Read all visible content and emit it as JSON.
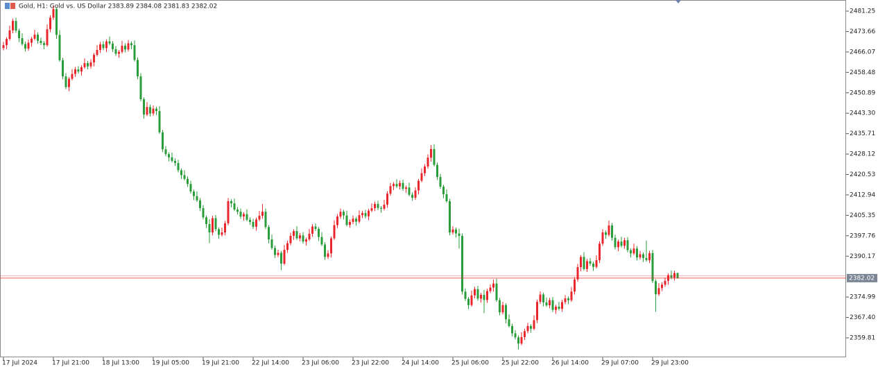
{
  "chart_data": {
    "type": "candlestick",
    "title": "Gold, H1:  Gold vs. US Dollar  2383.89 2384.08 2381.83 2382.02",
    "up_color": "#e8262b",
    "down_color": "#2a9d3a",
    "last_price": 2382.02,
    "ylim": [
      2352.59,
      2485.38
    ],
    "yticks": [
      2481.25,
      2473.66,
      2466.07,
      2458.48,
      2450.89,
      {
        "value": 2443.3,
        "label": "2443.30"
      },
      2435.71,
      2428.12,
      2420.53,
      2412.94,
      2405.35,
      2397.76,
      2390.17,
      2374.99,
      {
        "value": 2367.4,
        "label": "2367.40"
      },
      2359.81
    ],
    "categories": [
      "17 Jul 2024",
      null,
      null,
      null,
      null,
      null,
      null,
      null,
      null,
      null,
      null,
      null,
      null,
      null,
      null,
      null,
      "17 Jul 21:00",
      null,
      null,
      null,
      null,
      null,
      null,
      null,
      null,
      null,
      null,
      null,
      null,
      null,
      null,
      null,
      "18 Jul 13:00",
      null,
      null,
      null,
      null,
      null,
      null,
      null,
      null,
      null,
      null,
      null,
      null,
      null,
      null,
      null,
      "19 Jul 05:00",
      null,
      null,
      null,
      null,
      null,
      null,
      null,
      null,
      null,
      null,
      null,
      null,
      null,
      null,
      null,
      "19 Jul 21:00",
      null,
      null,
      null,
      null,
      null,
      null,
      null,
      null,
      null,
      null,
      null,
      null,
      null,
      null,
      null,
      "22 Jul 14:00",
      null,
      null,
      null,
      null,
      null,
      null,
      null,
      null,
      null,
      null,
      null,
      null,
      null,
      null,
      null,
      "23 Jul 06:00",
      null,
      null,
      null,
      null,
      null,
      null,
      null,
      null,
      null,
      null,
      null,
      null,
      null,
      null,
      null,
      "23 Jul 22:00",
      null,
      null,
      null,
      null,
      null,
      null,
      null,
      null,
      null,
      null,
      null,
      null,
      null,
      null,
      null,
      "24 Jul 14:00",
      null,
      null,
      null,
      null,
      null,
      null,
      null,
      null,
      null,
      null,
      null,
      null,
      null,
      null,
      null,
      "25 Jul 06:00",
      null,
      null,
      null,
      null,
      null,
      null,
      null,
      null,
      null,
      null,
      null,
      null,
      null,
      null,
      null,
      "25 Jul 22:00",
      null,
      null,
      null,
      null,
      null,
      null,
      null,
      null,
      null,
      null,
      null,
      null,
      null,
      null,
      null,
      "26 Jul 14:00",
      null,
      null,
      null,
      null,
      null,
      null,
      null,
      null,
      null,
      null,
      null,
      null,
      null,
      null,
      null,
      "29 Jul 07:00",
      null,
      null,
      null,
      null,
      null,
      null,
      null,
      null,
      null,
      null,
      null,
      null,
      null,
      null,
      null,
      "29 Jul 23:00",
      null,
      null,
      null,
      null,
      null,
      null,
      null,
      null
    ],
    "open": [
      2467.5,
      2468.6,
      2470.9,
      2474.1,
      2477.6,
      2474.0,
      2471.2,
      2469.0,
      2467.3,
      2469.5,
      2471.0,
      2472.5,
      2470.2,
      2469.4,
      2468.6,
      2474.5,
      2478.8,
      2482.0,
      2472.4,
      2463.0,
      2457.0,
      2453.0,
      2456.1,
      2457.9,
      2459.6,
      2458.8,
      2460.4,
      2461.9,
      2460.7,
      2462.2,
      2465.0,
      2466.8,
      2468.9,
      2467.5,
      2470.0,
      2469.2,
      2467.1,
      2465.4,
      2466.1,
      2468.4,
      2467.0,
      2469.3,
      2468.6,
      2463.1,
      2457.0,
      2448.5,
      2442.8,
      2445.6,
      2443.2,
      2445.0,
      2444.1,
      2436.2,
      2429.9,
      2428.1,
      2426.9,
      2425.6,
      2424.8,
      2422.1,
      2420.3,
      2418.9,
      2417.0,
      2414.2,
      2412.5,
      2410.9,
      2408.0,
      2404.6,
      2402.1,
      2399.0,
      2404.3,
      2400.2,
      2398.1,
      2399.0,
      2402.4,
      2410.6,
      2409.8,
      2407.5,
      2406.7,
      2404.9,
      2405.8,
      2403.7,
      2402.9,
      2401.1,
      2403.8,
      2405.2,
      2406.7,
      2401.0,
      2396.4,
      2393.2,
      2390.6,
      2391.4,
      2387.4,
      2392.5,
      2395.0,
      2397.7,
      2399.5,
      2396.8,
      2397.9,
      2395.6,
      2396.4,
      2398.5,
      2401.2,
      2400.3,
      2397.3,
      2394.5,
      2389.9,
      2391.2,
      2396.8,
      2401.7,
      2404.9,
      2406.7,
      2405.3,
      2401.8,
      2402.9,
      2404.1,
      2403.0,
      2405.4,
      2406.2,
      2405.0,
      2407.1,
      2408.0,
      2409.6,
      2408.1,
      2407.8,
      2409.3,
      2413.4,
      2416.2,
      2417.0,
      2416.1,
      2417.4,
      2415.2,
      2415.7,
      2413.0,
      2411.9,
      2414.6,
      2418.2,
      2421.0,
      2423.5,
      2426.8,
      2430.0,
      2424.1,
      2419.6,
      2416.0,
      2413.2,
      2410.6,
      2399.0,
      2400.1,
      2398.6,
      2397.7,
      2377.0,
      2374.3,
      2372.0,
      2375.6,
      2377.9,
      2374.4,
      2375.8,
      2373.9,
      2377.2,
      2378.5,
      2380.0,
      2373.8,
      2369.3,
      2372.0,
      2366.7,
      2364.2,
      2361.5,
      2360.0,
      2357.7,
      2360.1,
      2362.3,
      2364.2,
      2363.2,
      2366.4,
      2373.2,
      2375.9,
      2373.0,
      2371.9,
      2373.8,
      2370.2,
      2371.4,
      2370.6,
      2373.1,
      2374.5,
      2373.8,
      2377.0,
      2381.5,
      2386.1,
      2389.9,
      2385.4,
      2388.3,
      2387.4,
      2386.2,
      2388.7,
      2394.8,
      2399.0,
      2398.1,
      2401.6,
      2397.0,
      2393.5,
      2395.6,
      2394.0,
      2396.1,
      2392.4,
      2391.2,
      2393.0,
      2389.7,
      2390.9,
      2389.5,
      2388.7,
      2391.3,
      2380.9,
      2376.0,
      2378.3,
      2379.6,
      2381.0,
      2383.1,
      2382.2,
      2383.89
    ],
    "high": [
      2469.8,
      2471.6,
      2475.9,
      2478.5,
      2478.8,
      2474.7,
      2473.0,
      2469.9,
      2470.7,
      2471.7,
      2474.3,
      2473.4,
      2471.4,
      2470.1,
      2476.3,
      2479.7,
      2483.2,
      2482.7,
      2474.2,
      2463.9,
      2458.2,
      2456.8,
      2459.7,
      2460.5,
      2460.8,
      2461.1,
      2463.7,
      2462.8,
      2463.4,
      2465.7,
      2468.6,
      2469.8,
      2470.1,
      2470.7,
      2471.8,
      2470.1,
      2468.3,
      2466.8,
      2470.2,
      2469.3,
      2470.5,
      2470.0,
      2470.4,
      2464.0,
      2458.2,
      2449.2,
      2447.4,
      2446.5,
      2446.2,
      2445.7,
      2445.9,
      2437.1,
      2431.1,
      2428.8,
      2428.7,
      2426.5,
      2426.0,
      2422.8,
      2422.1,
      2419.8,
      2418.2,
      2414.9,
      2414.3,
      2411.8,
      2409.2,
      2405.3,
      2403.9,
      2405.2,
      2405.5,
      2400.9,
      2400.8,
      2403.3,
      2411.8,
      2411.3,
      2411.6,
      2408.4,
      2407.9,
      2406.5,
      2407.6,
      2404.6,
      2404.1,
      2404.5,
      2407.0,
      2409.6,
      2407.9,
      2401.7,
      2398.2,
      2394.1,
      2392.6,
      2392.1,
      2394.3,
      2395.9,
      2398.9,
      2400.2,
      2401.3,
      2398.8,
      2399.1,
      2397.1,
      2400.3,
      2402.1,
      2402.4,
      2401.0,
      2399.1,
      2395.4,
      2392.4,
      2397.5,
      2403.5,
      2405.8,
      2407.9,
      2407.4,
      2407.1,
      2403.8,
      2405.3,
      2404.8,
      2407.2,
      2407.1,
      2407.4,
      2407.8,
      2409.8,
      2410.5,
      2410.8,
      2408.8,
      2411.1,
      2414.3,
      2417.4,
      2417.7,
      2418.8,
      2418.3,
      2418.6,
      2416.4,
      2417.5,
      2413.9,
      2415.8,
      2418.9,
      2422.8,
      2424.4,
      2428.0,
      2431.5,
      2431.8,
      2425.0,
      2420.8,
      2416.7,
      2415.0,
      2411.5,
      2401.3,
      2400.8,
      2400.4,
      2398.6,
      2378.2,
      2375.0,
      2377.4,
      2378.8,
      2379.1,
      2376.5,
      2377.6,
      2378.1,
      2379.7,
      2381.5,
      2381.8,
      2374.7,
      2373.2,
      2372.7,
      2368.5,
      2365.1,
      2362.7,
      2360.7,
      2361.9,
      2363.2,
      2365.4,
      2364.9,
      2368.2,
      2374.1,
      2377.1,
      2376.6,
      2374.8,
      2374.7,
      2375.0,
      2372.1,
      2373.2,
      2374.0,
      2375.7,
      2375.2,
      2378.8,
      2382.4,
      2387.3,
      2390.6,
      2391.7,
      2389.2,
      2389.5,
      2388.1,
      2390.5,
      2395.7,
      2400.2,
      2399.7,
      2403.4,
      2402.5,
      2398.2,
      2396.3,
      2397.4,
      2397.0,
      2397.3,
      2393.1,
      2394.8,
      2393.9,
      2392.1,
      2391.6,
      2396.0,
      2392.2,
      2392.5,
      2381.6,
      2380.1,
      2380.5,
      2382.2,
      2383.8,
      2384.9,
      2384.8,
      2384.08
    ],
    "low": [
      2466.7,
      2467.1,
      2470.3,
      2473.0,
      2473.2,
      2469.7,
      2468.4,
      2466.2,
      2466.5,
      2468.0,
      2470.4,
      2469.1,
      2468.6,
      2467.1,
      2468.0,
      2473.4,
      2478.0,
      2470.9,
      2462.4,
      2455.9,
      2452.2,
      2451.5,
      2455.5,
      2456.8,
      2458.0,
      2457.3,
      2459.8,
      2459.6,
      2459.9,
      2460.7,
      2464.4,
      2465.7,
      2466.7,
      2466.0,
      2468.6,
      2466.0,
      2464.6,
      2463.9,
      2465.5,
      2465.9,
      2466.2,
      2467.1,
      2462.5,
      2455.9,
      2447.7,
      2441.3,
      2442.2,
      2442.1,
      2442.4,
      2442.6,
      2435.6,
      2428.8,
      2427.3,
      2425.4,
      2425.0,
      2423.7,
      2421.3,
      2418.8,
      2418.3,
      2415.9,
      2413.4,
      2411.0,
      2410.3,
      2406.9,
      2403.8,
      2400.6,
      2395.0,
      2397.9,
      2399.4,
      2396.6,
      2397.5,
      2397.9,
      2401.6,
      2408.3,
      2406.9,
      2405.6,
      2404.1,
      2403.4,
      2403.1,
      2401.8,
      2400.3,
      2399.6,
      2403.2,
      2404.1,
      2400.2,
      2394.9,
      2392.6,
      2389.5,
      2389.8,
      2385.0,
      2386.8,
      2391.4,
      2394.2,
      2396.2,
      2396.2,
      2395.7,
      2394.8,
      2394.1,
      2395.8,
      2397.4,
      2399.5,
      2395.8,
      2393.9,
      2388.8,
      2389.1,
      2389.7,
      2396.2,
      2400.6,
      2404.1,
      2403.8,
      2401.2,
      2400.7,
      2402.1,
      2401.5,
      2402.4,
      2404.3,
      2404.2,
      2403.5,
      2406.5,
      2406.9,
      2407.3,
      2406.3,
      2407.2,
      2408.2,
      2412.6,
      2414.7,
      2415.5,
      2415.0,
      2414.4,
      2413.7,
      2412.4,
      2410.8,
      2411.1,
      2413.1,
      2417.6,
      2419.9,
      2422.7,
      2425.3,
      2423.5,
      2418.5,
      2415.2,
      2411.7,
      2410.0,
      2397.9,
      2398.2,
      2397.1,
      2393.0,
      2375.9,
      2373.5,
      2370.5,
      2371.4,
      2374.5,
      2373.6,
      2372.9,
      2369.0,
      2372.8,
      2376.4,
      2377.0,
      2373.2,
      2368.2,
      2368.5,
      2365.2,
      2363.6,
      2360.4,
      2359.2,
      2355.5,
      2357.1,
      2359.0,
      2361.5,
      2361.7,
      2362.6,
      2365.3,
      2372.4,
      2371.5,
      2371.3,
      2370.8,
      2369.4,
      2368.7,
      2370.0,
      2369.5,
      2372.3,
      2372.3,
      2373.2,
      2375.9,
      2380.7,
      2384.6,
      2384.8,
      2384.3,
      2386.6,
      2384.7,
      2385.6,
      2387.6,
      2394.0,
      2396.6,
      2397.5,
      2395.9,
      2392.7,
      2392.0,
      2393.4,
      2392.9,
      2391.6,
      2389.7,
      2390.6,
      2388.6,
      2388.9,
      2388.0,
      2388.1,
      2387.6,
      2380.1,
      2369.5,
      2375.4,
      2377.2,
      2378.8,
      2379.5,
      2381.6,
      2381.1,
      2381.83
    ],
    "close": [
      2468.6,
      2470.9,
      2474.1,
      2477.6,
      2474.0,
      2471.2,
      2469.0,
      2467.3,
      2469.5,
      2471.0,
      2472.5,
      2470.2,
      2469.4,
      2468.6,
      2474.5,
      2478.8,
      2482.0,
      2472.4,
      2463.0,
      2457.0,
      2453.0,
      2456.1,
      2457.9,
      2459.6,
      2458.8,
      2460.4,
      2461.9,
      2460.7,
      2462.2,
      2465.0,
      2466.8,
      2468.9,
      2467.5,
      2470.0,
      2469.2,
      2467.1,
      2465.4,
      2466.1,
      2468.4,
      2467.0,
      2469.3,
      2468.6,
      2463.1,
      2457.0,
      2448.5,
      2442.8,
      2445.6,
      2443.2,
      2445.0,
      2444.1,
      2436.2,
      2429.9,
      2428.1,
      2426.9,
      2425.6,
      2424.8,
      2422.1,
      2420.3,
      2418.9,
      2417.0,
      2414.2,
      2412.5,
      2410.9,
      2408.0,
      2404.6,
      2402.1,
      2399.0,
      2404.3,
      2400.2,
      2398.1,
      2399.0,
      2402.4,
      2410.6,
      2409.8,
      2407.5,
      2406.7,
      2404.9,
      2405.8,
      2403.7,
      2402.9,
      2401.1,
      2403.8,
      2405.2,
      2406.7,
      2401.0,
      2396.4,
      2393.2,
      2390.6,
      2391.4,
      2387.4,
      2392.5,
      2395.0,
      2397.7,
      2399.5,
      2396.8,
      2397.9,
      2395.6,
      2396.4,
      2398.5,
      2401.2,
      2400.3,
      2397.3,
      2394.5,
      2389.9,
      2391.2,
      2396.8,
      2401.7,
      2404.9,
      2406.7,
      2405.3,
      2401.8,
      2402.9,
      2404.1,
      2403.0,
      2405.4,
      2406.2,
      2405.0,
      2407.1,
      2408.0,
      2409.6,
      2408.1,
      2407.8,
      2409.3,
      2413.4,
      2416.2,
      2417.0,
      2416.1,
      2417.4,
      2415.2,
      2415.7,
      2413.0,
      2411.9,
      2414.6,
      2418.2,
      2421.0,
      2423.5,
      2426.8,
      2430.0,
      2424.1,
      2419.6,
      2416.0,
      2413.2,
      2410.6,
      2399.0,
      2400.1,
      2398.6,
      2397.7,
      2377.0,
      2374.3,
      2372.0,
      2375.6,
      2377.9,
      2374.4,
      2375.8,
      2373.9,
      2377.2,
      2378.5,
      2380.0,
      2373.8,
      2369.3,
      2372.0,
      2366.7,
      2364.2,
      2361.5,
      2360.0,
      2357.7,
      2360.1,
      2362.3,
      2364.2,
      2363.2,
      2366.4,
      2373.2,
      2375.9,
      2373.0,
      2371.9,
      2373.8,
      2370.2,
      2371.4,
      2370.6,
      2373.1,
      2374.5,
      2373.8,
      2377.0,
      2381.5,
      2386.1,
      2389.9,
      2385.4,
      2388.3,
      2387.4,
      2386.2,
      2388.7,
      2394.8,
      2399.0,
      2398.1,
      2401.6,
      2397.0,
      2393.5,
      2395.6,
      2394.0,
      2396.1,
      2392.4,
      2391.2,
      2393.0,
      2389.7,
      2390.9,
      2389.5,
      2388.7,
      2391.3,
      2380.9,
      2376.0,
      2378.3,
      2379.6,
      2381.0,
      2383.1,
      2382.2,
      2383.89,
      2382.02
    ]
  }
}
